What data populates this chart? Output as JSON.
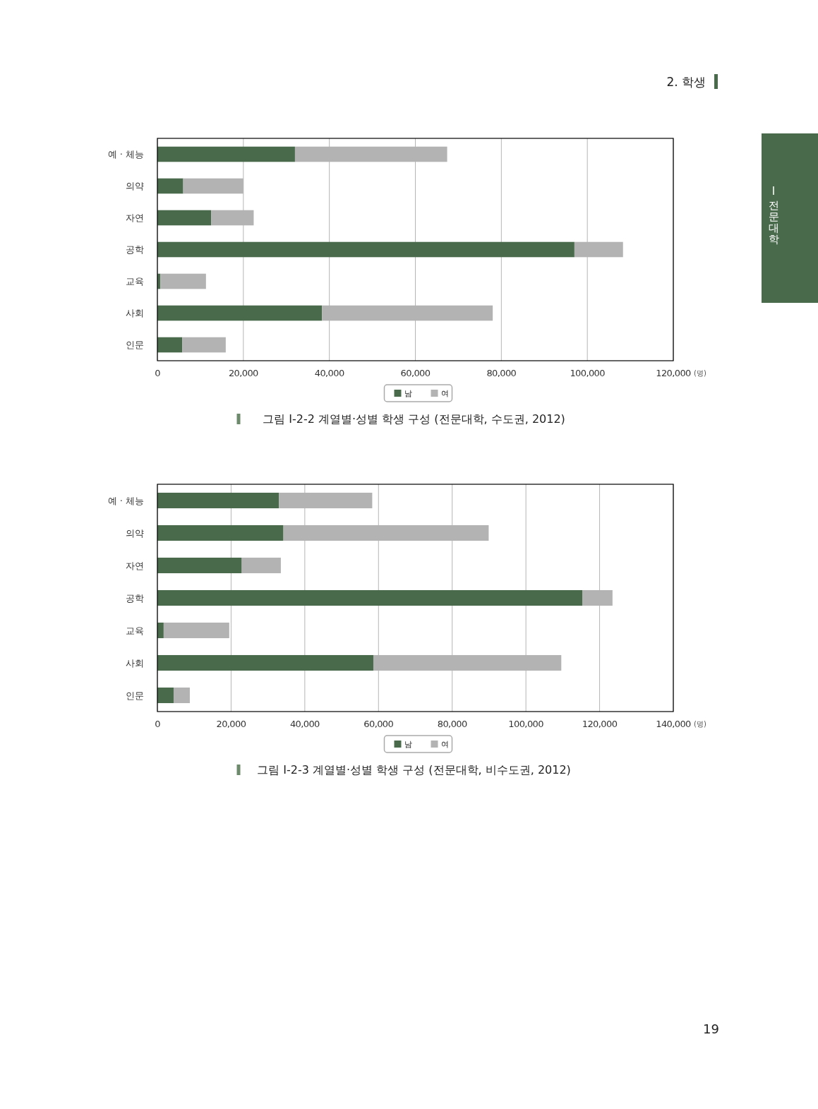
{
  "chart_data": [
    {
      "type": "bar",
      "orientation": "horizontal",
      "stacked": true,
      "title": "그림 Ⅰ-2-2 계열별·성별 학생 구성 (전문대학, 수도권, 2012)",
      "xlabel": "(명)",
      "categories": [
        "예 · 체능",
        "의약",
        "자연",
        "공학",
        "교육",
        "사회",
        "인문"
      ],
      "series": [
        {
          "name": "남",
          "color": "#4a6a4c",
          "values": [
            32000,
            6000,
            12500,
            97000,
            700,
            38300,
            5800
          ]
        },
        {
          "name": "여",
          "color": "#b3b3b3",
          "values": [
            35400,
            14000,
            9900,
            11300,
            10600,
            39700,
            10100
          ]
        }
      ],
      "xlim": [
        0,
        120000
      ],
      "xticks": [
        0,
        {
          "value": 20000,
          "label": "20,000"
        },
        {
          "value": 40000,
          "label": "40,000"
        },
        {
          "value": 60000,
          "label": "60,000"
        },
        {
          "value": 80000,
          "label": "80,000"
        },
        {
          "value": 100000,
          "label": "100,000"
        },
        {
          "value": 120000,
          "label": "120,000"
        }
      ],
      "grid": "x",
      "legend": "bottom",
      "annotations": [
        "2. 학생",
        "Ⅰ 전문대학",
        "19"
      ]
    },
    {
      "type": "bar",
      "orientation": "horizontal",
      "stacked": true,
      "title": "그림 Ⅰ-2-3 계열별·성별 학생 구성 (전문대학, 비수도권, 2012)",
      "xlabel": "(명)",
      "categories": [
        "예 · 체능",
        "의약",
        "자연",
        "공학",
        "교육",
        "사회",
        "인문"
      ],
      "series": [
        {
          "name": "남",
          "color": "#4a6a4c",
          "values": [
            33000,
            34200,
            22900,
            115300,
            1700,
            58600,
            4400
          ]
        },
        {
          "name": "여",
          "color": "#b3b3b3",
          "values": [
            25300,
            55700,
            10600,
            8200,
            17800,
            51000,
            4400
          ]
        }
      ],
      "xlim": [
        0,
        140000
      ],
      "xticks": [
        0,
        {
          "value": 20000,
          "label": "20,000"
        },
        {
          "value": 40000,
          "label": "40,000"
        },
        {
          "value": 60000,
          "label": "60,000"
        },
        {
          "value": 80000,
          "label": "80,000"
        },
        {
          "value": 100000,
          "label": "100,000"
        },
        {
          "value": 120000,
          "label": "120,000"
        },
        {
          "value": 140000,
          "label": "140,000"
        }
      ],
      "grid": "x",
      "legend": "bottom"
    }
  ]
}
